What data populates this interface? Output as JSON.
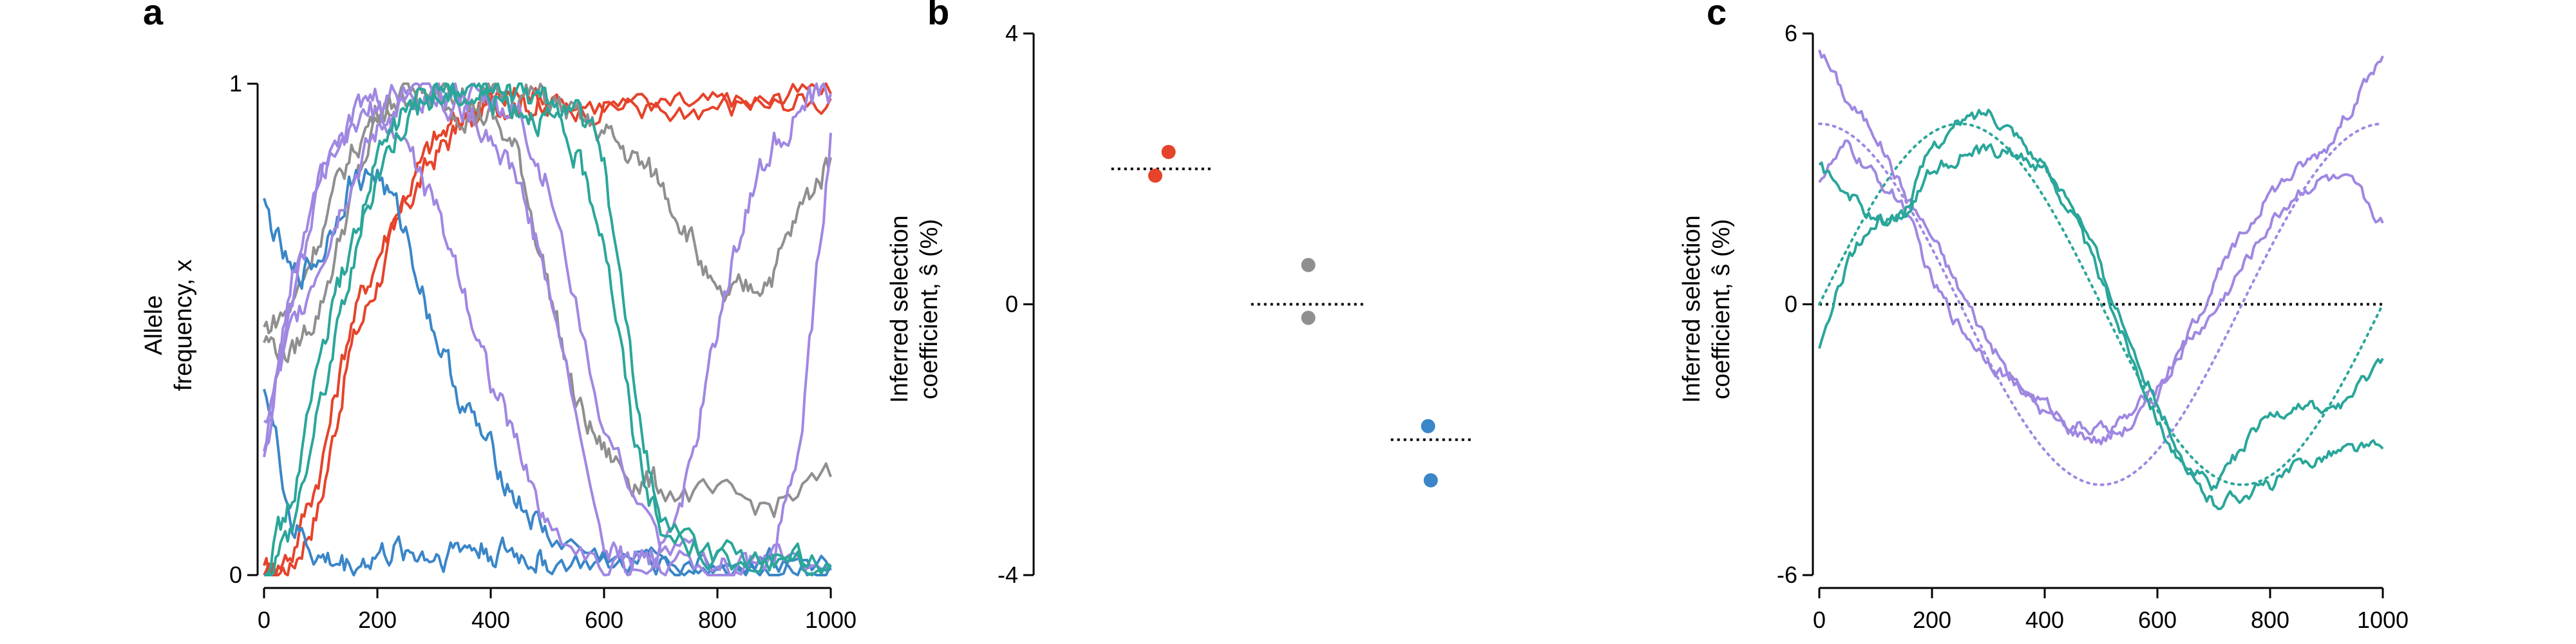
{
  "colors": {
    "red": "#e6432b",
    "gray": "#8f8f8f",
    "blue": "#3a86c8",
    "purple": "#a087e2",
    "teal": "#2aa69a",
    "axis": "#000000"
  },
  "chart_data": [
    {
      "panel": "a",
      "type": "line",
      "title": "",
      "xlabel": "",
      "ylabel_lines": [
        "Allele",
        "frequency, x"
      ],
      "xlim": [
        0,
        1000
      ],
      "ylim": [
        0,
        1
      ],
      "xticks": [
        0,
        200,
        400,
        600,
        800,
        1000
      ],
      "yticks": [
        0,
        1
      ],
      "xtick_labels": [
        "0",
        "200",
        "400",
        "600",
        "800",
        "1000"
      ],
      "ytick_labels": [
        "0",
        "1"
      ],
      "grid": false,
      "series": [
        {
          "color": "red",
          "x": [
            0,
            50,
            100,
            150,
            200,
            250,
            300,
            350,
            400,
            450,
            500,
            600,
            700,
            800,
            900,
            1000
          ],
          "values": [
            0.0,
            0.02,
            0.15,
            0.45,
            0.6,
            0.75,
            0.85,
            0.92,
            0.96,
            0.97,
            0.95,
            0.96,
            0.95,
            0.95,
            0.96,
            0.97
          ]
        },
        {
          "color": "red",
          "x": [
            0,
            50,
            100,
            150,
            200,
            250,
            300,
            350,
            400,
            450,
            500,
            600,
            700,
            800,
            900,
            1000
          ],
          "values": [
            0.0,
            0.05,
            0.22,
            0.5,
            0.65,
            0.78,
            0.88,
            0.93,
            0.96,
            0.98,
            0.97,
            0.96,
            0.94,
            0.96,
            0.97,
            0.98
          ]
        },
        {
          "color": "gray",
          "x": [
            0,
            50,
            100,
            150,
            200,
            250,
            300,
            350,
            400,
            450,
            500,
            550,
            600,
            650,
            700,
            800,
            900,
            1000
          ],
          "values": [
            0.48,
            0.45,
            0.55,
            0.75,
            0.92,
            0.98,
            0.97,
            0.95,
            0.93,
            0.85,
            0.6,
            0.35,
            0.25,
            0.2,
            0.18,
            0.15,
            0.14,
            0.2
          ]
        },
        {
          "color": "gray",
          "x": [
            0,
            50,
            100,
            150,
            200,
            250,
            300,
            350,
            400,
            450,
            500,
            550,
            600,
            650,
            700,
            750,
            800,
            850,
            900,
            950,
            1000
          ],
          "values": [
            0.5,
            0.55,
            0.7,
            0.85,
            0.95,
            0.98,
            0.99,
            0.98,
            0.97,
            0.98,
            0.97,
            0.93,
            0.9,
            0.85,
            0.8,
            0.7,
            0.55,
            0.58,
            0.62,
            0.75,
            0.85
          ]
        },
        {
          "color": "blue",
          "x": [
            0,
            50,
            100,
            150,
            200,
            250,
            300,
            350,
            400,
            450,
            500,
            600,
            700,
            800,
            900,
            1000
          ],
          "values": [
            0.75,
            0.6,
            0.65,
            0.8,
            0.82,
            0.7,
            0.5,
            0.35,
            0.25,
            0.15,
            0.08,
            0.03,
            0.02,
            0.02,
            0.02,
            0.01
          ]
        },
        {
          "color": "blue",
          "x": [
            0,
            50,
            100,
            150,
            200,
            250,
            300,
            350,
            400,
            450,
            500,
            600,
            700,
            800,
            900,
            1000
          ],
          "values": [
            0.4,
            0.1,
            0.03,
            0.02,
            0.04,
            0.05,
            0.04,
            0.06,
            0.05,
            0.04,
            0.03,
            0.02,
            0.03,
            0.02,
            0.03,
            0.02
          ]
        },
        {
          "color": "purple",
          "x": [
            0,
            50,
            100,
            150,
            200,
            250,
            300,
            350,
            400,
            450,
            500,
            600,
            700,
            800,
            900,
            1000
          ],
          "values": [
            0.25,
            0.55,
            0.8,
            0.9,
            0.95,
            0.88,
            0.75,
            0.6,
            0.4,
            0.25,
            0.1,
            0.02,
            0.02,
            0.02,
            0.03,
            0.02
          ]
        },
        {
          "color": "purple",
          "x": [
            0,
            50,
            100,
            150,
            200,
            250,
            300,
            350,
            400,
            450,
            500,
            600,
            650,
            700,
            750,
            800,
            850,
            900,
            950,
            1000
          ],
          "values": [
            0.25,
            0.6,
            0.85,
            0.93,
            0.97,
            0.98,
            0.97,
            0.95,
            0.9,
            0.8,
            0.6,
            0.05,
            0.03,
            0.05,
            0.2,
            0.5,
            0.75,
            0.88,
            0.95,
            0.98
          ]
        },
        {
          "color": "purple",
          "x": [
            0,
            50,
            100,
            150,
            200,
            250,
            300,
            350,
            400,
            450,
            500,
            600,
            700,
            800,
            850,
            900,
            950,
            1000
          ],
          "values": [
            0.3,
            0.5,
            0.65,
            0.8,
            0.9,
            0.97,
            0.99,
            0.98,
            0.97,
            0.94,
            0.8,
            0.3,
            0.05,
            0.02,
            0.02,
            0.03,
            0.3,
            0.9
          ]
        },
        {
          "color": "teal",
          "x": [
            0,
            50,
            100,
            150,
            200,
            250,
            300,
            350,
            400,
            450,
            500,
            550,
            600,
            650,
            700,
            800,
            900,
            1000
          ],
          "values": [
            0.02,
            0.15,
            0.45,
            0.65,
            0.85,
            0.95,
            0.98,
            0.99,
            0.98,
            0.97,
            0.96,
            0.95,
            0.85,
            0.4,
            0.1,
            0.03,
            0.02,
            0.02
          ]
        },
        {
          "color": "teal",
          "x": [
            0,
            50,
            100,
            150,
            200,
            250,
            300,
            350,
            400,
            450,
            500,
            550,
            600,
            650,
            700,
            800,
            900,
            1000
          ],
          "values": [
            0.0,
            0.1,
            0.35,
            0.6,
            0.82,
            0.94,
            0.97,
            0.98,
            0.97,
            0.96,
            0.93,
            0.85,
            0.7,
            0.3,
            0.08,
            0.04,
            0.03,
            0.02
          ]
        }
      ]
    },
    {
      "panel": "b",
      "type": "scatter",
      "title": "",
      "xlabel": "",
      "ylabel_lines": [
        "Inferred selection",
        "coefficient, ŝ (%)"
      ],
      "xlim": [
        0,
        3
      ],
      "ylim": [
        -4,
        4
      ],
      "yticks": [
        -4,
        0,
        4
      ],
      "ytick_labels": [
        "-4",
        "0",
        "4"
      ],
      "grid": false,
      "true_values": [
        {
          "color": "red",
          "x_range": [
            0.1,
            0.85
          ],
          "value": 2.0
        },
        {
          "color": "gray",
          "x_range": [
            1.15,
            2.0
          ],
          "value": 0.0
        },
        {
          "color": "blue",
          "x_range": [
            2.2,
            2.8
          ],
          "value": -2.0
        }
      ],
      "points": [
        {
          "color": "red",
          "x": 0.43,
          "value": 1.9
        },
        {
          "color": "red",
          "x": 0.53,
          "value": 2.25
        },
        {
          "color": "gray",
          "x": 1.58,
          "value": 0.58
        },
        {
          "color": "gray",
          "x": 1.58,
          "value": -0.2
        },
        {
          "color": "blue",
          "x": 2.48,
          "value": -1.8
        },
        {
          "color": "blue",
          "x": 2.5,
          "value": -2.6
        }
      ]
    },
    {
      "panel": "c",
      "type": "line",
      "title": "",
      "xlabel": "",
      "ylabel_lines": [
        "Inferred selection",
        "coefficient, ŝ (%)"
      ],
      "xlim": [
        0,
        1000
      ],
      "ylim": [
        -6,
        6
      ],
      "xticks": [
        0,
        200,
        400,
        600,
        800,
        1000
      ],
      "yticks": [
        -6,
        0,
        6
      ],
      "xtick_labels": [
        "0",
        "200",
        "400",
        "600",
        "800",
        "1000"
      ],
      "ytick_labels": [
        "-6",
        "0",
        "6"
      ],
      "grid": false,
      "true_curves": [
        {
          "color": "purple",
          "amplitude": 4,
          "period": 1000,
          "phase": "cos",
          "style": "dotted"
        },
        {
          "color": "teal",
          "amplitude": 4,
          "period": 1000,
          "phase": "sin",
          "start_value": 0,
          "style": "dotted"
        }
      ],
      "series": [
        {
          "color": "purple",
          "x": [
            0,
            50,
            100,
            150,
            200,
            250,
            300,
            350,
            400,
            450,
            500,
            550,
            600,
            650,
            700,
            750,
            800,
            850,
            900,
            950,
            1000
          ],
          "values": [
            5.7,
            4.5,
            3.8,
            2.5,
            1.5,
            0.3,
            -0.8,
            -1.8,
            -2.4,
            -2.8,
            -3.0,
            -2.7,
            -2.0,
            -0.8,
            0.5,
            1.5,
            2.5,
            3.0,
            3.5,
            4.5,
            5.5
          ]
        },
        {
          "color": "purple",
          "x": [
            0,
            50,
            100,
            150,
            200,
            250,
            300,
            350,
            400,
            450,
            500,
            550,
            600,
            650,
            700,
            750,
            800,
            850,
            900,
            950,
            1000
          ],
          "values": [
            2.8,
            3.5,
            2.8,
            2.2,
            0.5,
            -0.5,
            -1.2,
            -1.8,
            -2.2,
            -2.7,
            -2.8,
            -2.5,
            -1.8,
            -0.9,
            -0.2,
            0.8,
            1.8,
            2.5,
            2.8,
            2.6,
            1.8
          ]
        },
        {
          "color": "teal",
          "x": [
            0,
            50,
            100,
            150,
            200,
            250,
            300,
            350,
            400,
            450,
            500,
            550,
            600,
            650,
            700,
            750,
            800,
            850,
            900,
            950,
            1000
          ],
          "values": [
            -1.1,
            1.0,
            1.8,
            2.0,
            3.5,
            4.0,
            4.3,
            3.8,
            3.0,
            2.0,
            0.5,
            -1.0,
            -2.5,
            -3.8,
            -4.4,
            -4.2,
            -4.0,
            -3.6,
            -3.3,
            -3.2,
            -3.2
          ]
        },
        {
          "color": "teal",
          "x": [
            0,
            50,
            100,
            150,
            200,
            250,
            300,
            350,
            400,
            450,
            500,
            550,
            600,
            650,
            700,
            750,
            800,
            850,
            900,
            950,
            1000
          ],
          "values": [
            3.0,
            2.5,
            1.8,
            2.0,
            3.0,
            3.3,
            3.4,
            3.3,
            3.0,
            2.2,
            0.8,
            -0.8,
            -2.2,
            -3.5,
            -4.0,
            -3.2,
            -2.5,
            -2.2,
            -2.4,
            -2.0,
            -1.2
          ]
        }
      ]
    }
  ]
}
